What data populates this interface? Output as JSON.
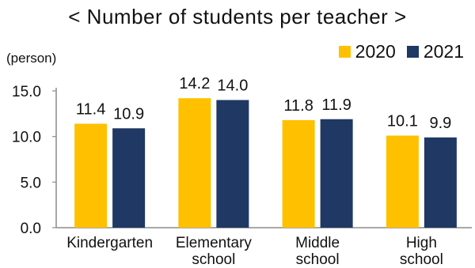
{
  "title": "< Number of students per teacher >",
  "unit_label": "(person)",
  "colors": {
    "series_2020": "#FFC000",
    "series_2021": "#1F3864",
    "axis": "#8C8C8C"
  },
  "chart_data": {
    "type": "bar",
    "categories": [
      [
        "Kindergarten"
      ],
      [
        "Elementary",
        "school"
      ],
      [
        "Middle",
        "school"
      ],
      [
        "High",
        "school"
      ]
    ],
    "series": [
      {
        "name": "2020",
        "values": [
          11.4,
          14.2,
          11.8,
          10.1
        ]
      },
      {
        "name": "2021",
        "values": [
          10.9,
          14.0,
          11.9,
          9.9
        ]
      }
    ],
    "data_labels": [
      [
        "11.4",
        "14.2",
        "11.8",
        "10.1"
      ],
      [
        "10.9",
        "14.0",
        "11.9",
        "9.9"
      ]
    ],
    "yticks": [
      "0.0",
      "5.0",
      "10.0",
      "15.0"
    ],
    "ylim": [
      0,
      15
    ],
    "legend_position": "top-right",
    "grid": false
  }
}
